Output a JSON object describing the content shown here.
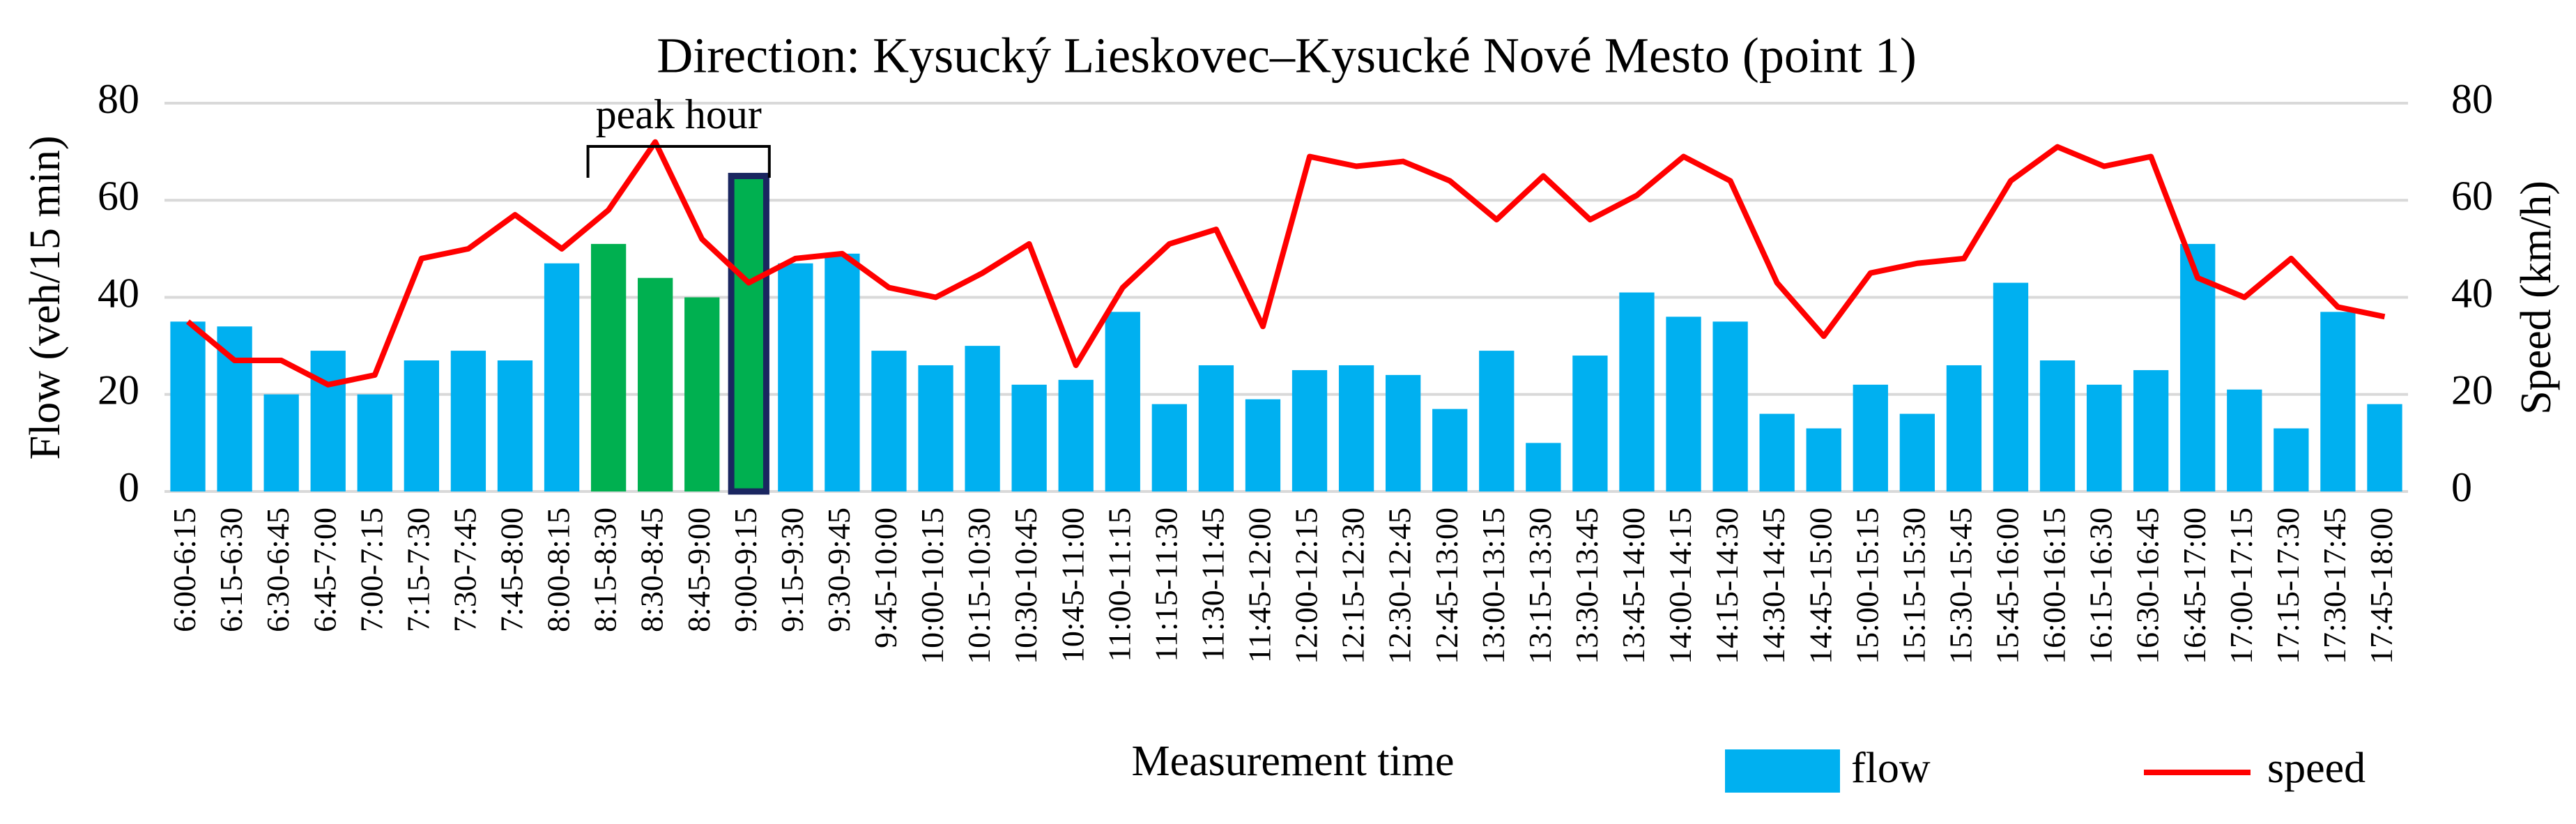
{
  "chart_data": {
    "type": "bar_line",
    "title": "Direction: Kysucký Lieskovec–Kysucké Nové Mesto (point 1)",
    "x_label": "Measurement time",
    "y_label": "Flow (veh/15 min)",
    "y2_label": "Speed (km/h)",
    "categories": [
      "6:00-6:15",
      "6:15-6:30",
      "6:30-6:45",
      "6:45-7:00",
      "7:00-7:15",
      "7:15-7:30",
      "7:30-7:45",
      "7:45-8:00",
      "8:00-8:15",
      "8:15-8:30",
      "8:30-8:45",
      "8:45-9:00",
      "9:00-9:15",
      "9:15-9:30",
      "9:30-9:45",
      "9:45-10:00",
      "10:00-10:15",
      "10:15-10:30",
      "10:30-10:45",
      "10:45-11:00",
      "11:00-11:15",
      "11:15-11:30",
      "11:30-11:45",
      "11:45-12:00",
      "12:00-12:15",
      "12:15-12:30",
      "12:30-12:45",
      "12:45-13:00",
      "13:00-13:15",
      "13:15-13:30",
      "13:30-13:45",
      "13:45-14:00",
      "14:00-14:15",
      "14:15-14:30",
      "14:30-14:45",
      "14:45-15:00",
      "15:00-15:15",
      "15:15-15:30",
      "15:30-15:45",
      "15:45-16:00",
      "16:00-16:15",
      "16:15-16:30",
      "16:30-16:45",
      "16:45-17:00",
      "17:00-17:15",
      "17:15-17:30",
      "17:30-17:45",
      "17:45-18:00"
    ],
    "series": [
      {
        "name": "flow",
        "kind": "bar",
        "color": "#00b0f0",
        "colors": [
          "#00b0f0",
          "#00b0f0",
          "#00b0f0",
          "#00b0f0",
          "#00b0f0",
          "#00b0f0",
          "#00b0f0",
          "#00b0f0",
          "#00b0f0",
          "#00b050",
          "#00b050",
          "#00b050",
          "#00b050",
          "#00b0f0",
          "#00b0f0",
          "#00b0f0",
          "#00b0f0",
          "#00b0f0",
          "#00b0f0",
          "#00b0f0",
          "#00b0f0",
          "#00b0f0",
          "#00b0f0",
          "#00b0f0",
          "#00b0f0",
          "#00b0f0",
          "#00b0f0",
          "#00b0f0",
          "#00b0f0",
          "#00b0f0",
          "#00b0f0",
          "#00b0f0",
          "#00b0f0",
          "#00b0f0",
          "#00b0f0",
          "#00b0f0",
          "#00b0f0",
          "#00b0f0",
          "#00b0f0",
          "#00b0f0",
          "#00b0f0",
          "#00b0f0",
          "#00b0f0",
          "#00b0f0",
          "#00b0f0",
          "#00b0f0",
          "#00b0f0",
          "#00b0f0"
        ],
        "values": [
          35,
          34,
          20,
          29,
          20,
          27,
          29,
          27,
          47,
          51,
          44,
          40,
          65,
          47,
          49,
          29,
          26,
          30,
          22,
          23,
          37,
          18,
          26,
          19,
          25,
          26,
          24,
          17,
          29,
          10,
          28,
          41,
          36,
          35,
          16,
          13,
          22,
          16,
          26,
          43,
          27,
          22,
          25,
          51,
          21,
          13,
          37,
          18
        ]
      },
      {
        "name": "speed",
        "kind": "line",
        "axis": "y2",
        "color": "#ff0000",
        "values": [
          35,
          27,
          27,
          22,
          24,
          48,
          50,
          57,
          50,
          58,
          72,
          52,
          43,
          48,
          49,
          42,
          40,
          45,
          51,
          26,
          42,
          51,
          54,
          34,
          69,
          67,
          68,
          64,
          56,
          65,
          56,
          61,
          69,
          64,
          43,
          32,
          45,
          47,
          48,
          64,
          71,
          67,
          69,
          44,
          40,
          48,
          38,
          36
        ]
      }
    ],
    "highlight": {
      "category": "9:00-9:15",
      "edge_color": "#1a2660"
    },
    "annotation": {
      "text": "peak hour",
      "from": "8:15-8:30",
      "to": "9:00-9:15"
    },
    "ylim": [
      0,
      80
    ],
    "yticks": [
      0,
      20,
      40,
      60,
      80
    ],
    "y2lim": [
      0,
      80
    ],
    "y2ticks": [
      0,
      20,
      40,
      60,
      80
    ],
    "grid": true
  }
}
